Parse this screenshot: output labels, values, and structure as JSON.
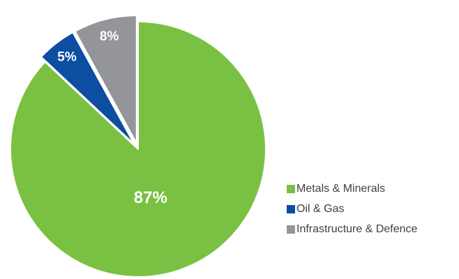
{
  "chart_data": {
    "type": "pie",
    "title": "",
    "slices": [
      {
        "label": "Metals & Minerals",
        "value": 87,
        "value_label": "87%",
        "color": "#7AC143"
      },
      {
        "label": "Oil & Gas",
        "value": 5,
        "value_label": "5%",
        "color": "#0B4EA2"
      },
      {
        "label": "Infrastructure & Defence",
        "value": 8,
        "value_label": "8%",
        "color": "#939598"
      }
    ],
    "legend": {
      "position": "right",
      "items": [
        {
          "label": "Metals & Minerals",
          "color": "#7AC143"
        },
        {
          "label": "Oil & Gas",
          "color": "#0B4EA2"
        },
        {
          "label": "Infrastructure & Defence",
          "color": "#939598"
        }
      ]
    }
  }
}
